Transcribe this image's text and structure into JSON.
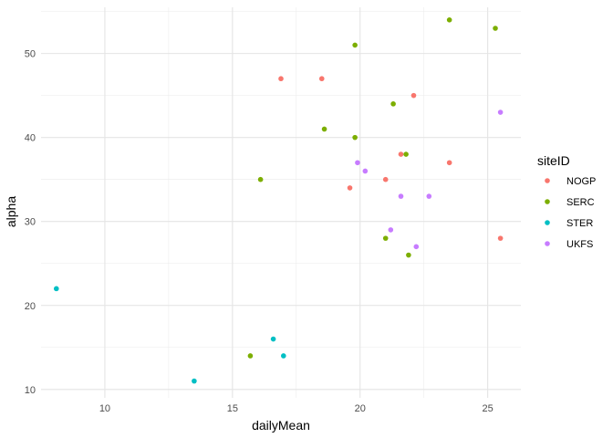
{
  "chart_data": {
    "type": "scatter",
    "xlabel": "dailyMean",
    "ylabel": "alpha",
    "xlim": [
      7.5,
      26.3
    ],
    "ylim": [
      9.0,
      55.5
    ],
    "x_ticks": [
      10,
      15,
      20,
      25
    ],
    "y_ticks": [
      10,
      20,
      30,
      40,
      50
    ],
    "grid": true,
    "legend": {
      "title": "siteID",
      "position": "right"
    },
    "series": [
      {
        "name": "NOGP",
        "color": "#F8766D",
        "points": [
          {
            "x": 16.9,
            "y": 47
          },
          {
            "x": 18.5,
            "y": 47
          },
          {
            "x": 22.1,
            "y": 45
          },
          {
            "x": 21.6,
            "y": 38
          },
          {
            "x": 23.5,
            "y": 37
          },
          {
            "x": 21.0,
            "y": 35
          },
          {
            "x": 19.6,
            "y": 34
          },
          {
            "x": 25.5,
            "y": 28
          }
        ]
      },
      {
        "name": "SERC",
        "color": "#7CAE00",
        "points": [
          {
            "x": 23.5,
            "y": 54
          },
          {
            "x": 25.3,
            "y": 53
          },
          {
            "x": 19.8,
            "y": 51
          },
          {
            "x": 21.3,
            "y": 44
          },
          {
            "x": 18.6,
            "y": 41
          },
          {
            "x": 19.8,
            "y": 40
          },
          {
            "x": 21.8,
            "y": 38
          },
          {
            "x": 16.1,
            "y": 35
          },
          {
            "x": 21.0,
            "y": 28
          },
          {
            "x": 21.9,
            "y": 26
          },
          {
            "x": 15.7,
            "y": 14
          }
        ]
      },
      {
        "name": "STER",
        "color": "#00BFC4",
        "points": [
          {
            "x": 8.1,
            "y": 22
          },
          {
            "x": 16.6,
            "y": 16
          },
          {
            "x": 17.0,
            "y": 14
          },
          {
            "x": 13.5,
            "y": 11
          }
        ]
      },
      {
        "name": "UKFS",
        "color": "#C77CFF",
        "points": [
          {
            "x": 25.5,
            "y": 43
          },
          {
            "x": 19.9,
            "y": 37
          },
          {
            "x": 20.2,
            "y": 36
          },
          {
            "x": 21.6,
            "y": 33
          },
          {
            "x": 22.7,
            "y": 33
          },
          {
            "x": 21.2,
            "y": 29
          },
          {
            "x": 22.2,
            "y": 27
          }
        ]
      }
    ]
  }
}
